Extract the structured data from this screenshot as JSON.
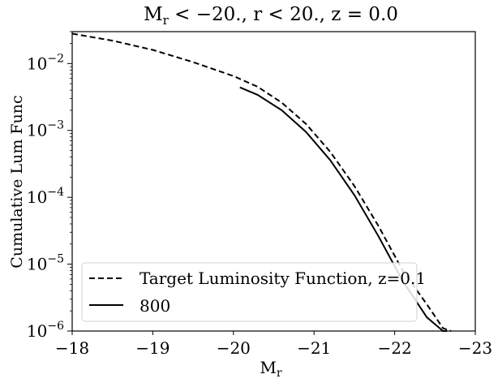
{
  "chart_data": {
    "type": "line",
    "title": "M_r < −20., r < 20., z = 0.0",
    "xlabel": "M_r",
    "ylabel": "Cumulative Lum Func",
    "xlim": [
      -18,
      -23
    ],
    "ylim": [
      1e-06,
      0.03
    ],
    "yscale": "log",
    "x_ticks": [
      "−18",
      "−19",
      "−20",
      "−21",
      "−22",
      "−23"
    ],
    "y_ticks": [
      "10^−6",
      "10^−5",
      "10^−4",
      "10^−3",
      "10^−2"
    ],
    "grid": false,
    "legend_position": "lower-left",
    "series": [
      {
        "name": "Target Luminosity Function, z=0.1",
        "style": "dashed",
        "color": "#000000",
        "x": [
          -18.0,
          -18.5,
          -19.0,
          -19.5,
          -20.0,
          -20.3,
          -20.6,
          -20.9,
          -21.2,
          -21.5,
          -21.8,
          -22.1,
          -22.4,
          -22.6,
          -22.7
        ],
        "y": [
          0.028,
          0.022,
          0.016,
          0.0105,
          0.0065,
          0.0045,
          0.0026,
          0.00125,
          0.00048,
          0.000148,
          3.7e-05,
          8e-06,
          2.5e-06,
          1.1e-06,
          9e-07
        ]
      },
      {
        "name": "800",
        "style": "solid",
        "color": "#000000",
        "x": [
          -20.08,
          -20.3,
          -20.6,
          -20.9,
          -21.2,
          -21.5,
          -21.8,
          -22.1,
          -22.4,
          -22.6,
          -22.65
        ],
        "y": [
          0.0044,
          0.0034,
          0.002,
          0.00095,
          0.00036,
          0.000108,
          2.6e-05,
          5.6e-06,
          1.6e-06,
          1e-06,
          9e-07
        ]
      }
    ]
  }
}
